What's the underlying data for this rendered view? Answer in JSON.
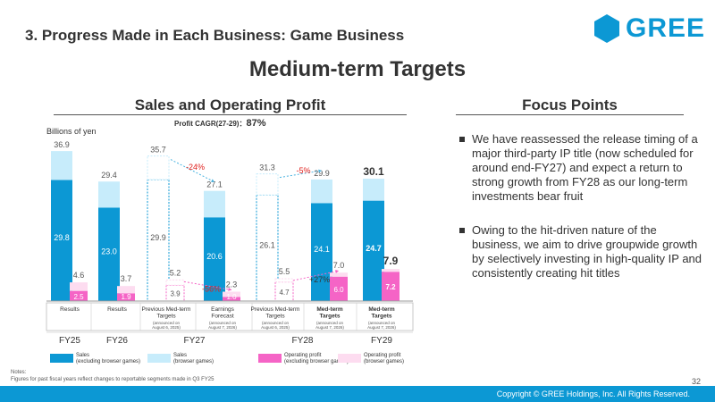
{
  "header": {
    "slide_title": "3. Progress Made in Each Business: Game Business",
    "logo_text": "GREE",
    "main_title": "Medium-term Targets"
  },
  "sections": {
    "sales_title": "Sales and Operating Profit",
    "focus_title": "Focus Points"
  },
  "focus_points": [
    "We have reassessed the release timing of a major third-party IP title (now scheduled for around end-FY27) and expect a return to strong growth from FY28 as our long-term investments bear fruit",
    "Owing to the hit-driven nature of the business, we aim to drive groupwide growth by selectively investing in high-quality IP and consistently creating hit titles"
  ],
  "chart_data": {
    "type": "bar",
    "ylabel": "Billions of yen",
    "ylim": [
      0,
      40
    ],
    "cagr_label": "Profit CAGR(27-29)：",
    "cagr_value": "87%",
    "categories": [
      {
        "label": "Results",
        "note": "",
        "bold": false
      },
      {
        "label": "Results",
        "note": "",
        "bold": false
      },
      {
        "label": "Previous Med-term Targets",
        "note": "(announced on August 6, 2025)",
        "bold": false
      },
      {
        "label": "Earnings Forecast",
        "note": "(announced on August 7, 2026)",
        "bold": false
      },
      {
        "label": "Previous Med-term Targets",
        "note": "(announced on August 6, 2025)",
        "bold": false
      },
      {
        "label": "Med-term Targets",
        "note": "(announced on August 7, 2026)",
        "bold": true
      },
      {
        "label": "Med-term Targets",
        "note": "(announced on August 7, 2026)",
        "bold": true
      }
    ],
    "fiscal_years": [
      {
        "label": "FY25",
        "span": [
          0,
          0
        ]
      },
      {
        "label": "FY26",
        "span": [
          1,
          1
        ]
      },
      {
        "label": "FY27",
        "span": [
          2,
          3
        ]
      },
      {
        "label": "FY28",
        "span": [
          4,
          5
        ]
      },
      {
        "label": "FY29",
        "span": [
          6,
          6
        ]
      }
    ],
    "series": [
      {
        "name": "Sales",
        "note": "(excluding browser games)",
        "color": "#0c98d4",
        "values": [
          29.8,
          23.0,
          29.9,
          20.6,
          26.1,
          24.1,
          24.7
        ]
      },
      {
        "name": "Sales",
        "note": "(browser games)",
        "color": "#c7ecfb",
        "values": [
          7.1,
          6.4,
          5.8,
          6.5,
          5.2,
          5.8,
          5.4
        ]
      },
      {
        "name": "Operating profit",
        "note": "(excluding browser games)",
        "color": "#f564c6",
        "values": [
          2.5,
          1.9,
          3.9,
          1.0,
          4.7,
          6.0,
          7.2
        ]
      },
      {
        "name": "Operating profit",
        "note": "(browser games)",
        "color": "#fddcf0",
        "values": [
          2.1,
          1.8,
          1.3,
          1.3,
          0.8,
          1.0,
          0.7
        ]
      }
    ],
    "totals": {
      "sales": [
        "36.9",
        "29.4",
        "35.7",
        "27.1",
        "31.3",
        "29.9",
        "30.1"
      ],
      "profit": [
        "4.6",
        "3.7",
        "5.2",
        "2.3",
        "5.5",
        "7.0",
        "7.9"
      ]
    },
    "segment_labels": {
      "sales_ex": [
        "29.8",
        "23.0",
        "29.9",
        "20.6",
        "26.1",
        "24.1",
        "24.7"
      ],
      "profit_ex": [
        "2.5",
        "1.9",
        "3.9",
        "1.0",
        "4.7",
        "6.0",
        "7.2"
      ]
    },
    "previous_targets": [
      2,
      4
    ],
    "annotations": [
      {
        "text": "-24%",
        "color": "#e0201d",
        "from": 2,
        "to": 3,
        "series": "sales"
      },
      {
        "text": "-56%",
        "color": "#e0201d",
        "from": 2,
        "to": 3,
        "series": "profit"
      },
      {
        "text": "-5%",
        "color": "#e0201d",
        "from": 4,
        "to": 5,
        "series": "sales"
      },
      {
        "text": "+27%",
        "color": "#333333",
        "from": 4,
        "to": 5,
        "series": "profit"
      }
    ]
  },
  "notes": {
    "label": "Notes:",
    "item": "Figures for past fiscal years reflect changes to reportable segments made in Q3 FY25"
  },
  "footer": {
    "page_number": "32",
    "copyright": "Copyright © GREE Holdings, Inc. All Rights Reserved."
  },
  "colors": {
    "brand": "#0c98d4",
    "decrease": "#e0201d"
  }
}
